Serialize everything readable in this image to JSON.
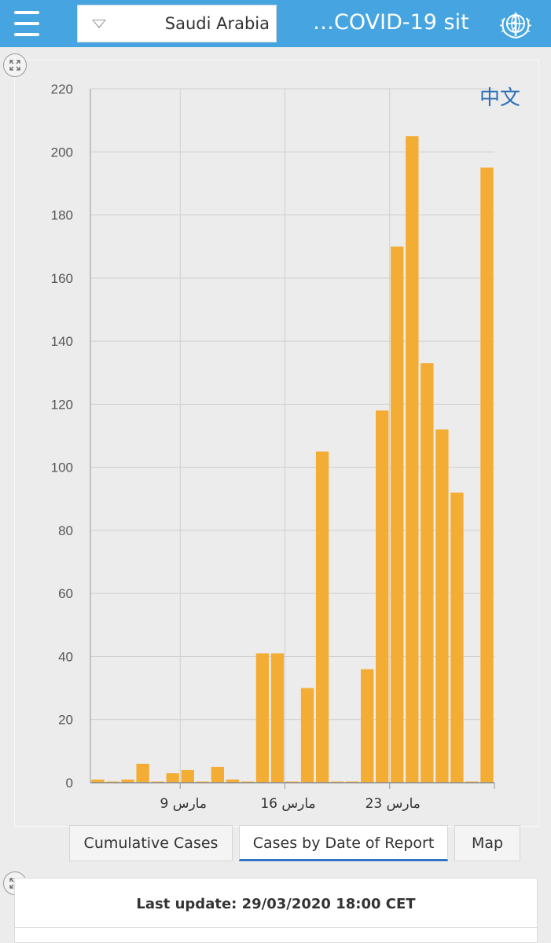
{
  "header": {
    "country_value": "Saudi Arabia",
    "title": "…COVID-19 sit"
  },
  "language_link": "中文",
  "tabs": [
    {
      "label": "Cumulative Cases"
    },
    {
      "label": "Cases by Date of Report"
    },
    {
      "label": "Map"
    }
  ],
  "footer": {
    "last_update": "Last update: 29/03/2020 18:00 CET"
  },
  "colors": {
    "header": "#46a5e0",
    "bar": "#f4ad34",
    "active_tab": "#2f73c2"
  },
  "chart_data": {
    "type": "bar",
    "ylim": [
      0,
      220
    ],
    "yticks": [
      0,
      20,
      40,
      60,
      80,
      100,
      120,
      140,
      160,
      180,
      200,
      220
    ],
    "x_tick_labels": [
      {
        "day": 9,
        "label": "9 مارس"
      },
      {
        "day": 16,
        "label": "16 مارس"
      },
      {
        "day": 23,
        "label": "23 مارس"
      }
    ],
    "days": [
      3,
      4,
      5,
      6,
      7,
      8,
      9,
      10,
      11,
      12,
      13,
      14,
      15,
      16,
      17,
      18,
      19,
      20,
      21,
      22,
      23,
      24,
      25,
      26,
      27,
      28,
      29
    ],
    "values": [
      1,
      0,
      1,
      6,
      0,
      3,
      4,
      0,
      5,
      1,
      0,
      41,
      41,
      0,
      30,
      105,
      0,
      0,
      36,
      118,
      170,
      205,
      133,
      112,
      92,
      0,
      195
    ],
    "grid": true
  }
}
